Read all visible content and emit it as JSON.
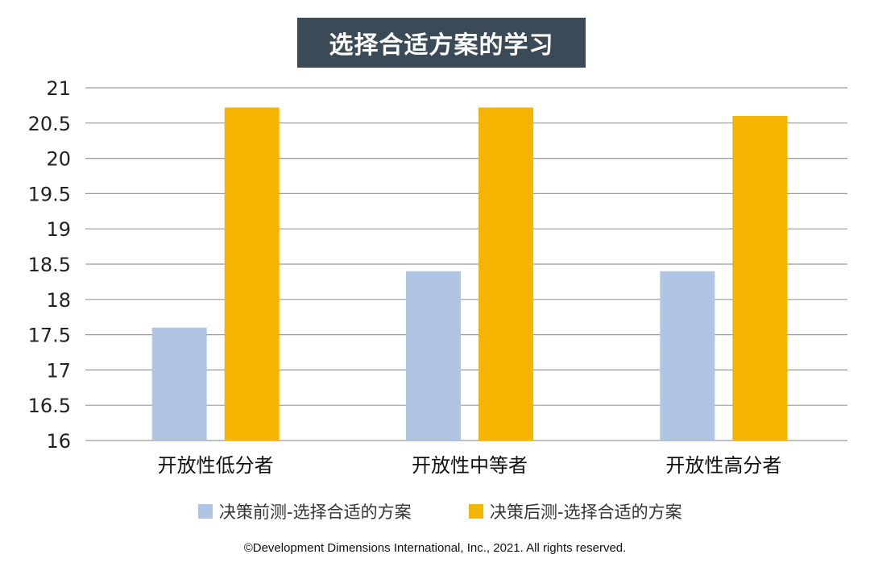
{
  "title": "选择合适方案的学习",
  "chart_data": {
    "type": "bar",
    "categories": [
      "开放性低分者",
      "开放性中等者",
      "开放性高分者"
    ],
    "series": [
      {
        "name": "决策前测-选择合适的方案",
        "values": [
          17.6,
          18.4,
          18.4
        ],
        "color": "#b0c4e3"
      },
      {
        "name": "决策后测-选择合适的方案",
        "values": [
          20.72,
          20.72,
          20.6
        ],
        "color": "#f5b400"
      }
    ],
    "ylim": [
      16,
      21
    ],
    "yticks": [
      "16",
      "16.5",
      "17",
      "17.5",
      "18",
      "18.5",
      "19",
      "19.5",
      "20",
      "20.5",
      "21"
    ],
    "grid": true,
    "legend_position": "bottom"
  },
  "copyright": "©Development Dimensions International, Inc., 2021. All rights reserved."
}
